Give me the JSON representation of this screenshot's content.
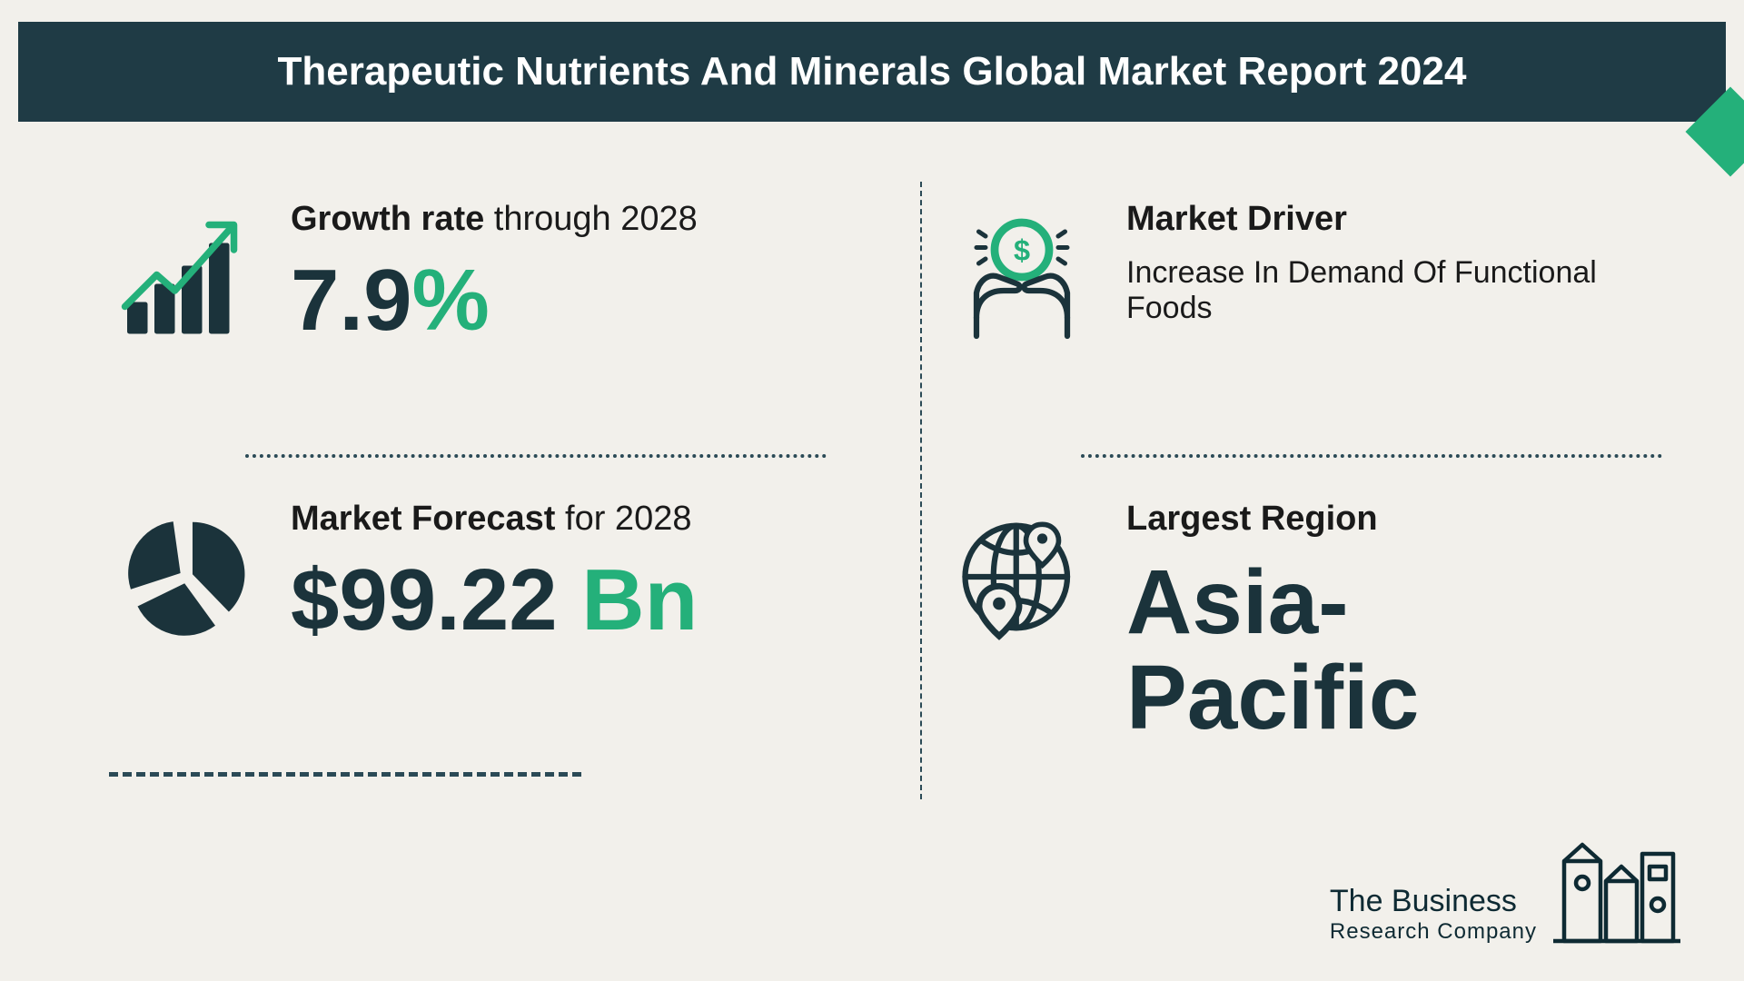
{
  "colors": {
    "bg": "#f2f0eb",
    "header_bg": "#1f3b45",
    "header_text": "#ffffff",
    "dark": "#1b333b",
    "green": "#24b07a",
    "text": "#1a1a1a",
    "divider": "#2b4a56"
  },
  "typography": {
    "title_fontsize": 44,
    "label_fontsize": 38,
    "big_value_fontsize": 96,
    "region_fontsize": 100,
    "driver_body_fontsize": 34
  },
  "title": "Therapeutic Nutrients And Minerals Global Market Report 2024",
  "growth": {
    "label_bold": "Growth rate",
    "label_rest": " through 2028",
    "value_num": "7.9",
    "value_suffix": "%",
    "icon_bars": [
      0.35,
      0.55,
      0.75,
      1.0
    ],
    "icon_bar_color": "#1b333b",
    "icon_arrow_color": "#24b07a"
  },
  "forecast": {
    "label_bold": "Market Forecast",
    "label_rest": " for 2028",
    "value_prefix": "$",
    "value_num": "99.22",
    "value_suffix": " Bn",
    "pie_slices": [
      40,
      30,
      30
    ],
    "pie_color": "#1b333b",
    "pie_gap_deg": 8
  },
  "driver": {
    "label": "Market Driver",
    "body": "Increase In Demand Of Functional Foods",
    "icon_stroke": "#1b333b",
    "icon_accent": "#24b07a"
  },
  "region": {
    "label": "Largest Region",
    "value_line1": "Asia-",
    "value_line2": "Pacific",
    "icon_stroke": "#1b333b"
  },
  "logo": {
    "line1": "The Business",
    "line2": "Research Company",
    "stroke": "#0e2a33"
  },
  "accent_color": "#24b07a"
}
